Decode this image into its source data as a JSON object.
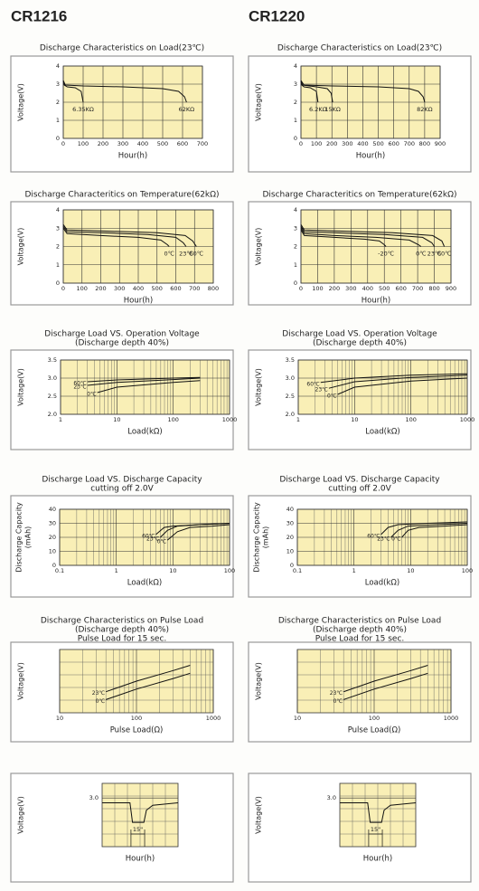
{
  "headers": [
    "CR1216",
    "CR1220"
  ],
  "chart_data": [
    {
      "type": "line",
      "title_lines": [
        "Discharge Characteristics on Load(23℃)"
      ],
      "y_label_lines": [
        "Voltage(V)"
      ],
      "x_label": "Hour(h)",
      "xlim": [
        0,
        700
      ],
      "xticks": [
        0,
        100,
        200,
        300,
        400,
        500,
        600,
        700
      ],
      "ylim": [
        0,
        4
      ],
      "yticks": [
        0,
        1,
        2,
        3,
        4
      ],
      "series": [
        {
          "name": "6.35KΩ",
          "x": [
            0,
            5,
            20,
            60,
            90,
            100
          ],
          "values": [
            3.2,
            2.95,
            2.85,
            2.8,
            2.6,
            2.0
          ]
        },
        {
          "name": "62KΩ",
          "x": [
            0,
            10,
            100,
            300,
            500,
            580,
            610,
            620
          ],
          "values": [
            3.2,
            2.95,
            2.9,
            2.85,
            2.75,
            2.6,
            2.3,
            2.0
          ]
        }
      ]
    },
    {
      "type": "line",
      "title_lines": [
        "Discharge Characteristics on Load(23℃)"
      ],
      "y_label_lines": [
        "Voltage(V)"
      ],
      "x_label": "Hour(h)",
      "xlim": [
        0,
        900
      ],
      "xticks": [
        0,
        100,
        200,
        300,
        400,
        500,
        600,
        700,
        800,
        900
      ],
      "ylim": [
        0,
        4
      ],
      "yticks": [
        0,
        1,
        2,
        3,
        4
      ],
      "series": [
        {
          "name": "6.2KΩ",
          "x": [
            0,
            5,
            20,
            60,
            100,
            110
          ],
          "values": [
            3.2,
            2.95,
            2.85,
            2.8,
            2.6,
            2.0
          ]
        },
        {
          "name": "15KΩ",
          "x": [
            0,
            10,
            100,
            170,
            195,
            205
          ],
          "values": [
            3.2,
            2.95,
            2.85,
            2.75,
            2.5,
            2.0
          ]
        },
        {
          "name": "82KΩ",
          "x": [
            0,
            20,
            200,
            500,
            700,
            760,
            790,
            800
          ],
          "values": [
            3.2,
            2.95,
            2.9,
            2.85,
            2.75,
            2.6,
            2.3,
            2.0
          ]
        }
      ]
    },
    {
      "type": "line",
      "title_lines": [
        "Discharge Characteritics on Temperature(62kΩ)"
      ],
      "y_label_lines": [
        "Voltage(V)"
      ],
      "x_label": "Hour(h)",
      "xlim": [
        0,
        800
      ],
      "xticks": [
        0,
        100,
        200,
        300,
        400,
        500,
        600,
        700,
        800
      ],
      "ylim": [
        0,
        4
      ],
      "yticks": [
        0,
        1,
        2,
        3,
        4
      ],
      "series": [
        {
          "name": "0℃",
          "x": [
            0,
            20,
            200,
            400,
            520,
            555,
            565
          ],
          "values": [
            3.0,
            2.7,
            2.6,
            2.5,
            2.35,
            2.1,
            2.0
          ]
        },
        {
          "name": "23℃",
          "x": [
            0,
            20,
            200,
            450,
            600,
            640,
            655
          ],
          "values": [
            3.1,
            2.8,
            2.75,
            2.65,
            2.5,
            2.2,
            2.0
          ]
        },
        {
          "name": "60℃",
          "x": [
            0,
            20,
            200,
            500,
            650,
            690,
            710
          ],
          "values": [
            3.2,
            2.9,
            2.85,
            2.75,
            2.6,
            2.3,
            2.0
          ]
        }
      ]
    },
    {
      "type": "line",
      "title_lines": [
        "Discharge Characteritics on Temperature(62kΩ)"
      ],
      "y_label_lines": [
        "Voltage(V)"
      ],
      "x_label": "Hour(h)",
      "xlim": [
        0,
        900
      ],
      "xticks": [
        0,
        100,
        200,
        300,
        400,
        500,
        600,
        700,
        800,
        900
      ],
      "ylim": [
        0,
        4
      ],
      "yticks": [
        0,
        1,
        2,
        3,
        4
      ],
      "series": [
        {
          "name": "-20℃",
          "x": [
            0,
            20,
            200,
            380,
            470,
            500,
            510
          ],
          "values": [
            2.9,
            2.6,
            2.5,
            2.4,
            2.3,
            2.1,
            2.0
          ]
        },
        {
          "name": "0℃",
          "x": [
            0,
            20,
            200,
            450,
            650,
            705,
            720
          ],
          "values": [
            3.0,
            2.7,
            2.6,
            2.5,
            2.35,
            2.1,
            2.0
          ]
        },
        {
          "name": "23℃",
          "x": [
            0,
            20,
            200,
            500,
            730,
            785,
            800
          ],
          "values": [
            3.1,
            2.8,
            2.75,
            2.65,
            2.5,
            2.2,
            2.0
          ]
        },
        {
          "name": "60℃",
          "x": [
            0,
            20,
            200,
            550,
            790,
            845,
            860
          ],
          "values": [
            3.2,
            2.9,
            2.85,
            2.75,
            2.6,
            2.3,
            2.0
          ]
        }
      ]
    },
    {
      "type": "line",
      "title_lines": [
        "Discharge Load VS. Operation Voltage",
        "(Discharge depth 40%)"
      ],
      "y_label_lines": [
        "Voltage(V)"
      ],
      "x_label": "Load(kΩ)",
      "xscale": "log",
      "xlim": [
        1,
        1000
      ],
      "xticks": [
        1,
        10,
        100,
        1000
      ],
      "ylim": [
        2.0,
        3.5
      ],
      "yticks": [
        {
          "value": 2,
          "label": "2.0"
        },
        2.5,
        {
          "value": 3,
          "label": "3.0"
        },
        3.5
      ],
      "series": [
        {
          "name": "60℃",
          "x": [
            3,
            10,
            100,
            300
          ],
          "values": [
            2.9,
            2.95,
            3.0,
            3.02
          ]
        },
        {
          "name": "23℃",
          "x": [
            3,
            10,
            100,
            300
          ],
          "values": [
            2.8,
            2.88,
            2.96,
            3.0
          ]
        },
        {
          "name": "0℃",
          "x": [
            4.5,
            10,
            100,
            300
          ],
          "values": [
            2.6,
            2.75,
            2.88,
            2.93
          ]
        }
      ]
    },
    {
      "type": "line",
      "title_lines": [
        "Discharge Load VS. Operation Voltage",
        "(Discharge depth 40%)"
      ],
      "y_label_lines": [
        "Voltage(V)"
      ],
      "x_label": "Load(kΩ)",
      "xscale": "log",
      "xlim": [
        1,
        1000
      ],
      "xticks": [
        1,
        10,
        100,
        1000
      ],
      "ylim": [
        2.0,
        3.5
      ],
      "yticks": [
        {
          "value": 2,
          "label": "2.0"
        },
        2.5,
        {
          "value": 3,
          "label": "3.0"
        },
        3.5
      ],
      "series": [
        {
          "name": "60℃",
          "x": [
            2.5,
            10,
            100,
            1000
          ],
          "values": [
            2.88,
            3.0,
            3.08,
            3.12
          ]
        },
        {
          "name": "23℃",
          "x": [
            3.5,
            10,
            100,
            1000
          ],
          "values": [
            2.72,
            2.9,
            3.02,
            3.08
          ]
        },
        {
          "name": "0℃",
          "x": [
            5,
            10,
            100,
            1000
          ],
          "values": [
            2.55,
            2.75,
            2.92,
            3.0
          ]
        }
      ]
    },
    {
      "type": "line",
      "title_lines": [
        "Discharge Load VS. Discharge Capacity",
        "cutting off 2.0V"
      ],
      "y_label_lines": [
        "Discharge Capacity",
        "(mAh)"
      ],
      "x_label": "Load(kΩ)",
      "xscale": "log",
      "xlim": [
        0.1,
        100
      ],
      "xticks": [
        0.1,
        1,
        10,
        100
      ],
      "ylim": [
        0,
        40
      ],
      "yticks": [
        0,
        10,
        20,
        30,
        40
      ],
      "series": [
        {
          "name": "60℃",
          "x": [
            5,
            7,
            10,
            30,
            100
          ],
          "values": [
            22,
            27,
            28,
            29,
            30
          ]
        },
        {
          "name": "23℃",
          "x": [
            6,
            8,
            12,
            30,
            100
          ],
          "values": [
            20,
            25,
            28,
            29,
            30
          ]
        },
        {
          "name": "0℃",
          "x": [
            8,
            12,
            20,
            50,
            100
          ],
          "values": [
            18,
            24,
            27,
            28,
            29
          ]
        }
      ]
    },
    {
      "type": "line",
      "title_lines": [
        "Discharge Load VS. Discharge Capacity",
        "cutting off 2.0V"
      ],
      "y_label_lines": [
        "Discharge Capacity",
        "(mAh)"
      ],
      "x_label": "Load(kΩ)",
      "xscale": "log",
      "xlim": [
        0.1,
        100
      ],
      "xticks": [
        0.1,
        1,
        10,
        100
      ],
      "ylim": [
        0,
        40
      ],
      "yticks": [
        0,
        10,
        20,
        30,
        40
      ],
      "series": [
        {
          "name": "60℃",
          "x": [
            3,
            4,
            6,
            20,
            100
          ],
          "values": [
            22,
            27,
            29,
            30,
            31
          ]
        },
        {
          "name": "23℃",
          "x": [
            4.5,
            6,
            9,
            30,
            100
          ],
          "values": [
            20,
            25,
            28,
            29,
            30
          ]
        },
        {
          "name": "0℃",
          "x": [
            7,
            9,
            14,
            40,
            100
          ],
          "values": [
            20,
            25,
            27,
            28,
            29
          ]
        }
      ]
    },
    {
      "type": "line",
      "title_lines": [
        "Discharge Characteristics on Pulse Load",
        "(Discharge depth 40%)",
        "Pulse Load for 15 sec."
      ],
      "y_label_lines": [
        "Voltage(V)"
      ],
      "x_label": "Pulse Load(Ω)",
      "xscale": "log",
      "xlim": [
        10,
        1000
      ],
      "xticks": [
        10,
        100,
        1000
      ],
      "ylim": [
        1.8,
        3.0
      ],
      "series": [
        {
          "name": "23℃",
          "x": [
            40,
            100,
            300,
            500
          ],
          "values": [
            2.2,
            2.4,
            2.6,
            2.7
          ]
        },
        {
          "name": "0℃",
          "x": [
            40,
            100,
            300,
            500
          ],
          "values": [
            2.05,
            2.25,
            2.45,
            2.55
          ]
        }
      ]
    },
    {
      "type": "line",
      "title_lines": [
        "Discharge Characteristics on Pulse Load",
        "(Discharge depth 40%)",
        "Pulse Load for 15 sec."
      ],
      "y_label_lines": [
        "Voltage(V)"
      ],
      "x_label": "Pulse Load(Ω)",
      "xscale": "log",
      "xlim": [
        10,
        1000
      ],
      "xticks": [
        10,
        100,
        1000
      ],
      "ylim": [
        1.8,
        3.0
      ],
      "series": [
        {
          "name": "23℃",
          "x": [
            40,
            100,
            300,
            500
          ],
          "values": [
            2.2,
            2.4,
            2.6,
            2.7
          ]
        },
        {
          "name": "0℃",
          "x": [
            40,
            100,
            300,
            500
          ],
          "values": [
            2.05,
            2.25,
            2.45,
            2.55
          ]
        }
      ]
    },
    {
      "type": "line",
      "y_label_lines": [
        "Voltage(V)"
      ],
      "x_label": "Hour(h)",
      "annotation": "15\"",
      "xlim": [
        0,
        60
      ],
      "ylim": [
        2.0,
        3.3
      ],
      "yticks": [
        {
          "value": 3,
          "label": "3.0"
        }
      ],
      "series": [
        {
          "x": [
            0,
            22,
            24,
            33,
            35,
            40,
            60
          ],
          "values": [
            2.9,
            2.9,
            2.5,
            2.5,
            2.75,
            2.85,
            2.9
          ]
        }
      ]
    },
    {
      "type": "line",
      "y_label_lines": [
        "Voltage(V)"
      ],
      "x_label": "Hour(h)",
      "annotation": "15\"",
      "xlim": [
        0,
        60
      ],
      "ylim": [
        2.0,
        3.3
      ],
      "yticks": [
        {
          "value": 3,
          "label": "3.0"
        }
      ],
      "series": [
        {
          "x": [
            0,
            22,
            24,
            33,
            35,
            40,
            60
          ],
          "values": [
            2.9,
            2.9,
            2.5,
            2.5,
            2.75,
            2.85,
            2.9
          ]
        }
      ]
    }
  ]
}
